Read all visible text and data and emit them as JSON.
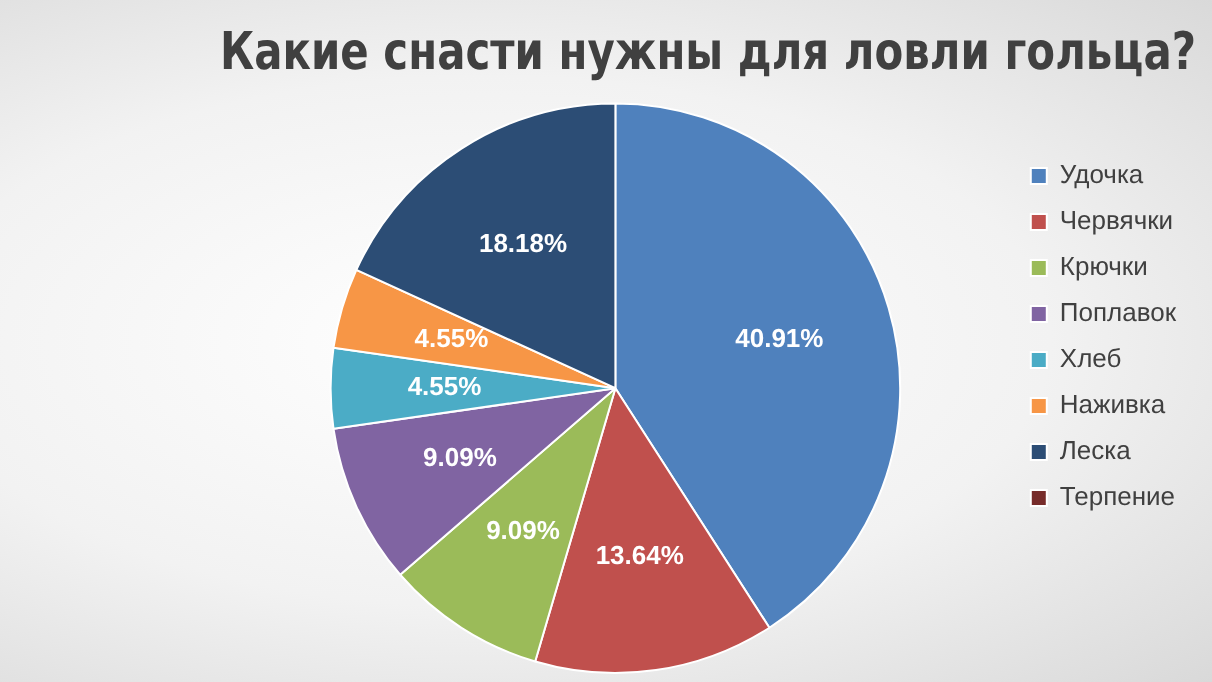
{
  "chart_data": {
    "type": "pie",
    "title": "Какие снасти нужны для ловли гольца?",
    "categories": [
      "Удочка",
      "Червячки",
      "Крючки",
      "Поплавок",
      "Хлеб",
      "Наживка",
      "Леска",
      "Терпение"
    ],
    "values": [
      40.91,
      13.64,
      9.09,
      9.09,
      4.55,
      4.55,
      18.18,
      0
    ],
    "colors": [
      "#4f81bd",
      "#c0504d",
      "#9bbb59",
      "#8064a2",
      "#4bacc6",
      "#f79646",
      "#2c4d75",
      "#772c2a"
    ],
    "value_labels": [
      "40.91%",
      "13.64%",
      "9.09%",
      "9.09%",
      "4.55%",
      "4.55%",
      "18.18%",
      null
    ],
    "legend": "right"
  }
}
